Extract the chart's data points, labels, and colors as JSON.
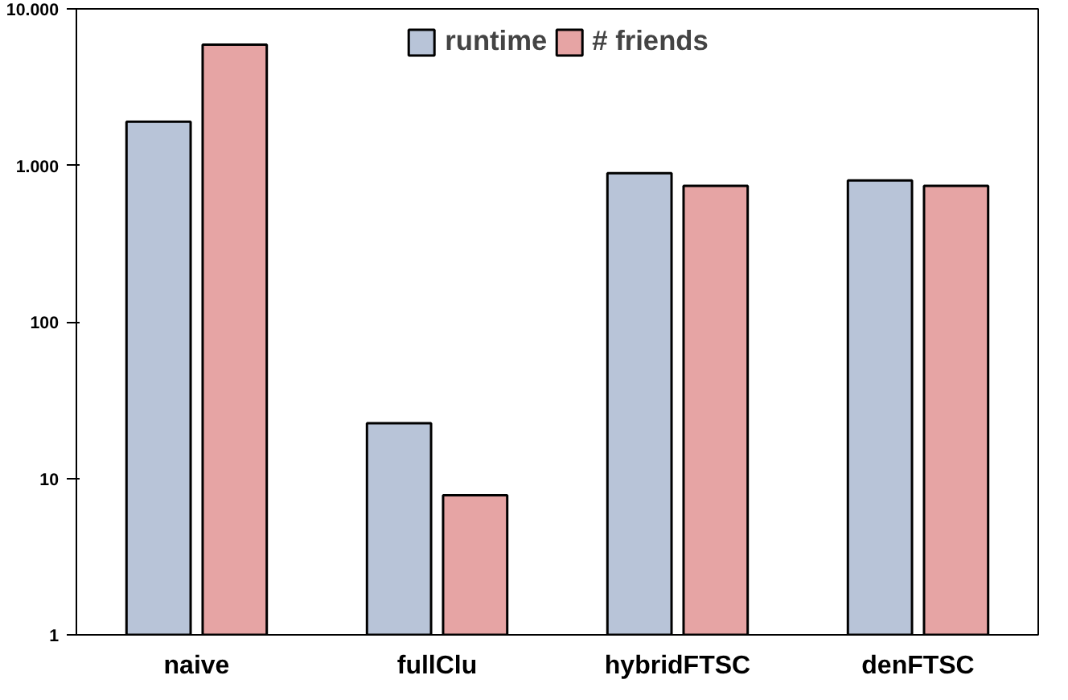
{
  "chart_data": {
    "type": "bar",
    "categories": [
      "naive",
      "fullClu",
      "hybridFTSC",
      "denFTSC"
    ],
    "series": [
      {
        "name": "runtime",
        "color": "#b8c4d8",
        "values": [
          1900,
          22.5,
          890,
          800
        ]
      },
      {
        "name": "# friends",
        "color": "#e6a4a4",
        "values": [
          5900,
          7.8,
          740,
          740
        ]
      }
    ],
    "log": true,
    "ylim": [
      1,
      10000
    ],
    "yticks": [
      1,
      10,
      100,
      {
        "value": 1000,
        "label": "1.000"
      },
      {
        "value": 10000,
        "label": "10.000"
      }
    ],
    "grid": false,
    "legend": "top"
  }
}
